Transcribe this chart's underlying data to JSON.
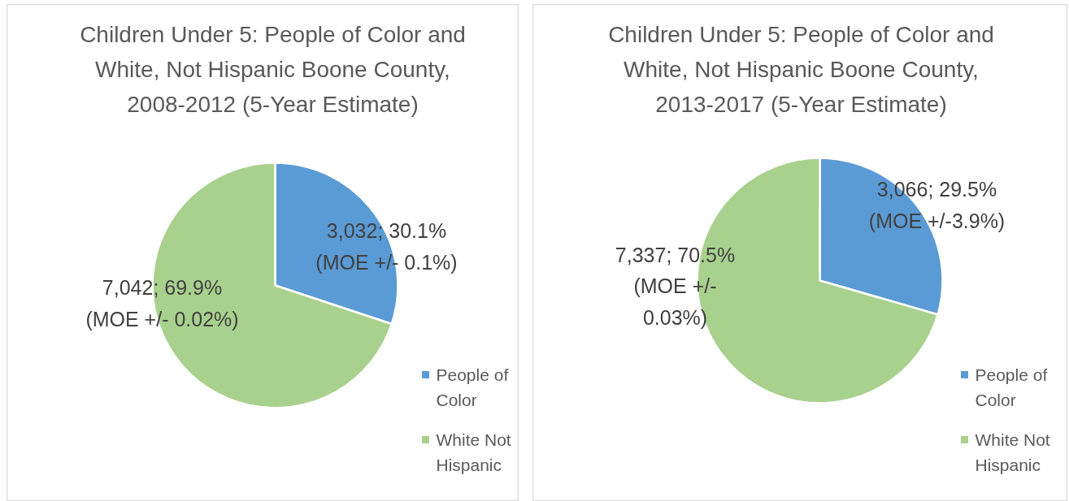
{
  "chart_data": [
    {
      "type": "pie",
      "title": "Children Under 5: People of Color and White, Not Hispanic Boone County, 2008-2012 (5-Year Estimate)",
      "categories": [
        "People of Color",
        "White Not Hispanic"
      ],
      "values": [
        3032,
        7042
      ],
      "colors": [
        "#5b9bd5",
        "#a9d18e"
      ],
      "value_labels": [
        "3,032; 30.1% (MOE +/- 0.1%)",
        "7,042; 69.9% (MOE +/- 0.02%)"
      ],
      "legend": "bottom right"
    },
    {
      "type": "pie",
      "title": "Children Under 5: People of Color and White, Not Hispanic Boone County, 2013-2017 (5-Year Estimate)",
      "categories": [
        "People of Color",
        "White Not Hispanic"
      ],
      "values": [
        3066,
        7337
      ],
      "colors": [
        "#5b9bd5",
        "#a9d18e"
      ],
      "value_labels": [
        "3,066; 29.5% (MOE +/-3.9%)",
        "7,337; 70.5% (MOE +/- 0.03%)"
      ],
      "legend": "bottom right"
    }
  ]
}
